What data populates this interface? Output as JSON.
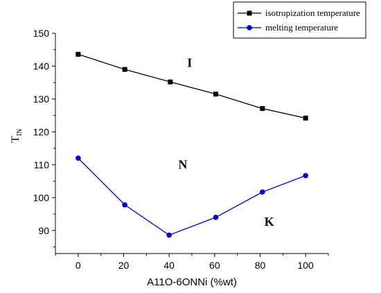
{
  "chart_data": {
    "type": "line",
    "x": [
      0,
      20,
      40,
      60,
      80,
      100
    ],
    "series": [
      {
        "name": "isotropization temperature",
        "x": [
          0,
          20.5,
          40.5,
          60.5,
          81,
          100
        ],
        "values": [
          143.6,
          139.0,
          135.2,
          131.5,
          127.1,
          124.2
        ],
        "color": "#000000",
        "marker": "square"
      },
      {
        "name": "melting temperature",
        "x": [
          0,
          20.5,
          40,
          60.5,
          81,
          100
        ],
        "values": [
          112.0,
          97.8,
          88.6,
          94.0,
          101.7,
          106.7
        ],
        "color": "#0000cc",
        "marker": "circle"
      }
    ],
    "xlabel": "A11O-6ONNi (%wt)",
    "ylabel_main": "T",
    "ylabel_sub": "IN",
    "xlim": [
      -10,
      110
    ],
    "ylim": [
      83,
      150
    ],
    "xticks": [
      "0",
      "20",
      "40",
      "60",
      "80",
      "100"
    ],
    "yticks": [
      "90",
      "100",
      "110",
      "120",
      "130",
      "140",
      "150"
    ],
    "annotations": [
      {
        "text": "I",
        "x": 49,
        "y": 139.8
      },
      {
        "text": "N",
        "x": 46,
        "y": 108.8
      },
      {
        "text": "K",
        "x": 84,
        "y": 91.4
      }
    ],
    "legend_position": "top-right",
    "grid": false
  }
}
